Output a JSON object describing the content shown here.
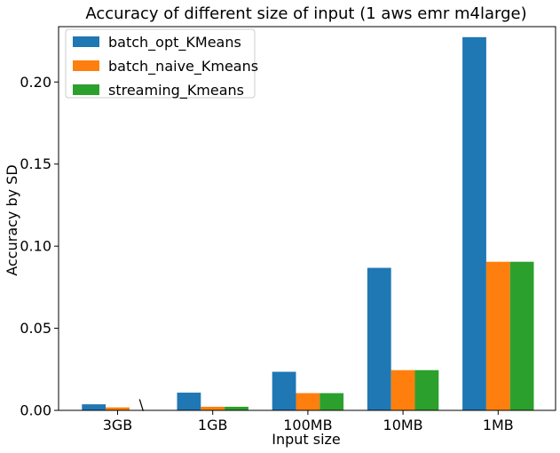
{
  "chart_data": {
    "type": "bar",
    "title": "Accuracy of different size of input (1 aws emr m4large)",
    "xlabel": "Input size",
    "ylabel": "Accuracy by SD",
    "categories": [
      "3GB",
      "1GB",
      "100MB",
      "10MB",
      "1MB"
    ],
    "ylim": [
      0,
      0.2337
    ],
    "yticks": [
      0.0,
      0.05,
      0.1,
      0.15,
      0.2
    ],
    "ytick_labels": [
      "0.00",
      "0.05",
      "0.10",
      "0.15",
      "0.20"
    ],
    "grid": false,
    "legend_position": "top-left",
    "series": [
      {
        "name": "batch_opt_KMeans",
        "color": "#1f77b4",
        "values": [
          0.0037,
          0.0108,
          0.0235,
          0.0868,
          0.2273
        ]
      },
      {
        "name": "batch_naive_Kmeans",
        "color": "#ff7f0e",
        "values": [
          0.0018,
          0.0022,
          0.0105,
          0.0245,
          0.0905
        ]
      },
      {
        "name": "streaming_Kmeans",
        "color": "#2ca02c",
        "values": [
          null,
          0.0022,
          0.0105,
          0.0245,
          0.0905
        ]
      }
    ],
    "annotations": [
      {
        "text": "\\",
        "category": "3GB",
        "series": "streaming_Kmeans",
        "value": 0.0
      }
    ]
  }
}
